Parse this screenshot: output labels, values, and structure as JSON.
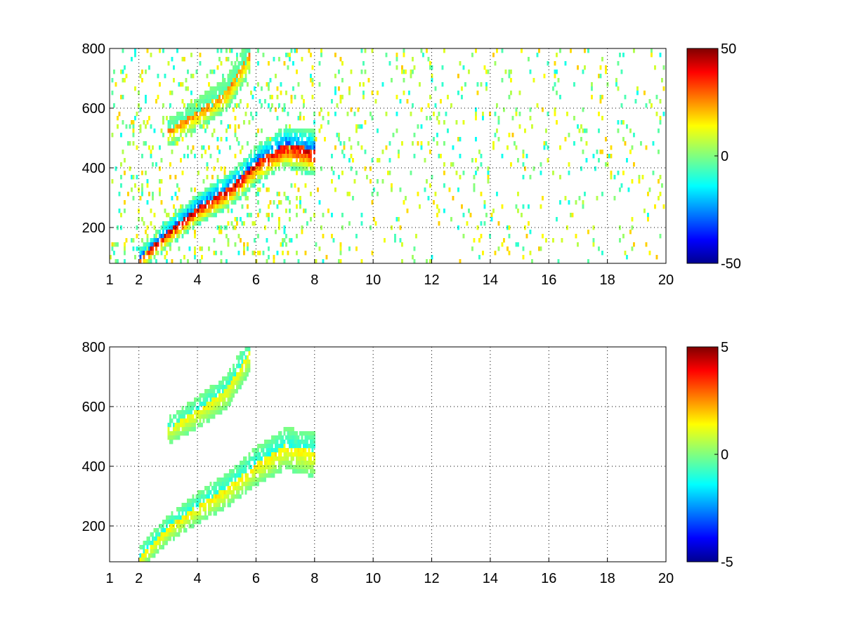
{
  "chart_data": [
    {
      "type": "heatmap",
      "title": "",
      "xlabel": "",
      "ylabel": "",
      "xlim": [
        1,
        20
      ],
      "ylim": [
        80,
        800
      ],
      "xticks": [
        1,
        2,
        4,
        6,
        8,
        10,
        12,
        14,
        16,
        18,
        20
      ],
      "yticks": [
        200,
        400,
        600,
        800
      ],
      "grid": true,
      "colormap": "jet",
      "colorbar": {
        "min": -50,
        "max": 50,
        "ticks": [
          50,
          0,
          -50
        ]
      },
      "background_noise": true,
      "ridges": [
        {
          "description": "lower ridge",
          "points": [
            [
              2.0,
              90
            ],
            [
              3.0,
              180
            ],
            [
              4.0,
              260
            ],
            [
              5.0,
              320
            ],
            [
              5.5,
              360
            ],
            [
              6.0,
              410
            ],
            [
              6.5,
              440
            ],
            [
              7.0,
              470
            ],
            [
              8.0,
              450
            ]
          ],
          "positive_weight": 1.0,
          "negative_weight": 0.9
        },
        {
          "description": "upper ridge",
          "points": [
            [
              3.0,
              520
            ],
            [
              4.0,
              580
            ],
            [
              5.0,
              650
            ],
            [
              5.8,
              780
            ]
          ],
          "positive_weight": 0.6,
          "negative_weight": 0.2
        }
      ]
    },
    {
      "type": "heatmap",
      "title": "",
      "xlabel": "",
      "ylabel": "",
      "xlim": [
        1,
        20
      ],
      "ylim": [
        80,
        800
      ],
      "xticks": [
        1,
        2,
        4,
        6,
        8,
        10,
        12,
        14,
        16,
        18,
        20
      ],
      "yticks": [
        200,
        400,
        600,
        800
      ],
      "grid": true,
      "colormap": "jet",
      "colorbar": {
        "min": -5,
        "max": 5,
        "ticks": [
          5,
          0,
          -5
        ]
      },
      "background_noise": false,
      "ridges": [
        {
          "description": "lower ridge",
          "points": [
            [
              2.0,
              90
            ],
            [
              3.0,
              190
            ],
            [
              4.0,
              260
            ],
            [
              5.0,
              320
            ],
            [
              5.5,
              360
            ],
            [
              6.0,
              400
            ],
            [
              6.5,
              430
            ],
            [
              7.0,
              460
            ],
            [
              8.0,
              440
            ]
          ],
          "positive_weight": 0.35,
          "negative_weight": 0.35
        },
        {
          "description": "upper ridge",
          "points": [
            [
              3.0,
              520
            ],
            [
              4.0,
              580
            ],
            [
              5.0,
              650
            ],
            [
              5.8,
              780
            ]
          ],
          "positive_weight": 0.3,
          "negative_weight": 0.3
        }
      ]
    }
  ]
}
